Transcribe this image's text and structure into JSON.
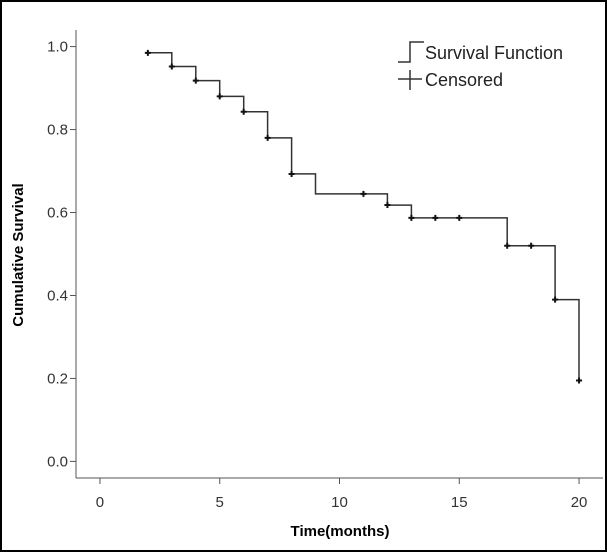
{
  "chart_data": {
    "type": "line",
    "xlabel": "Time(months)",
    "ylabel": "Cumulative Survival",
    "xlim": [
      -1,
      21
    ],
    "ylim": [
      -0.04,
      1.04
    ],
    "xticks": [
      0,
      5,
      10,
      15,
      20
    ],
    "yticks": [
      0.0,
      0.2,
      0.4,
      0.6,
      0.8,
      1.0
    ],
    "ytick_labels": [
      "0.0",
      "0.2",
      "0.4",
      "0.6",
      "0.8",
      "1.0"
    ],
    "grid": false,
    "legend_position": "top-right",
    "legend": [
      {
        "key": "survival",
        "label": "Survival Function"
      },
      {
        "key": "censored",
        "label": "Censored"
      }
    ],
    "series": [
      {
        "name": "Survival Function",
        "style": "step",
        "start": [
          2,
          0.985
        ],
        "steps": [
          {
            "x": 3,
            "y": 0.952
          },
          {
            "x": 4,
            "y": 0.918
          },
          {
            "x": 5,
            "y": 0.88
          },
          {
            "x": 6,
            "y": 0.843
          },
          {
            "x": 7,
            "y": 0.78
          },
          {
            "x": 8,
            "y": 0.693
          },
          {
            "x": 9,
            "y": 0.645
          },
          {
            "x": 12,
            "y": 0.618
          },
          {
            "x": 13,
            "y": 0.587
          },
          {
            "x": 17,
            "y": 0.52
          },
          {
            "x": 19,
            "y": 0.39
          },
          {
            "x": 20,
            "y": 0.195
          }
        ]
      },
      {
        "name": "Censored",
        "style": "markers",
        "points": [
          [
            2,
            0.985
          ],
          [
            3,
            0.952
          ],
          [
            4,
            0.918
          ],
          [
            5,
            0.88
          ],
          [
            6,
            0.843
          ],
          [
            7,
            0.78
          ],
          [
            8,
            0.693
          ],
          [
            11,
            0.645
          ],
          [
            12,
            0.618
          ],
          [
            13,
            0.587
          ],
          [
            14,
            0.587
          ],
          [
            15,
            0.587
          ],
          [
            17,
            0.52
          ],
          [
            18,
            0.52
          ],
          [
            19,
            0.39
          ],
          [
            20,
            0.195
          ]
        ]
      }
    ]
  },
  "colors": {
    "line": "#333333",
    "axis": "#555555",
    "border": "#000000"
  }
}
